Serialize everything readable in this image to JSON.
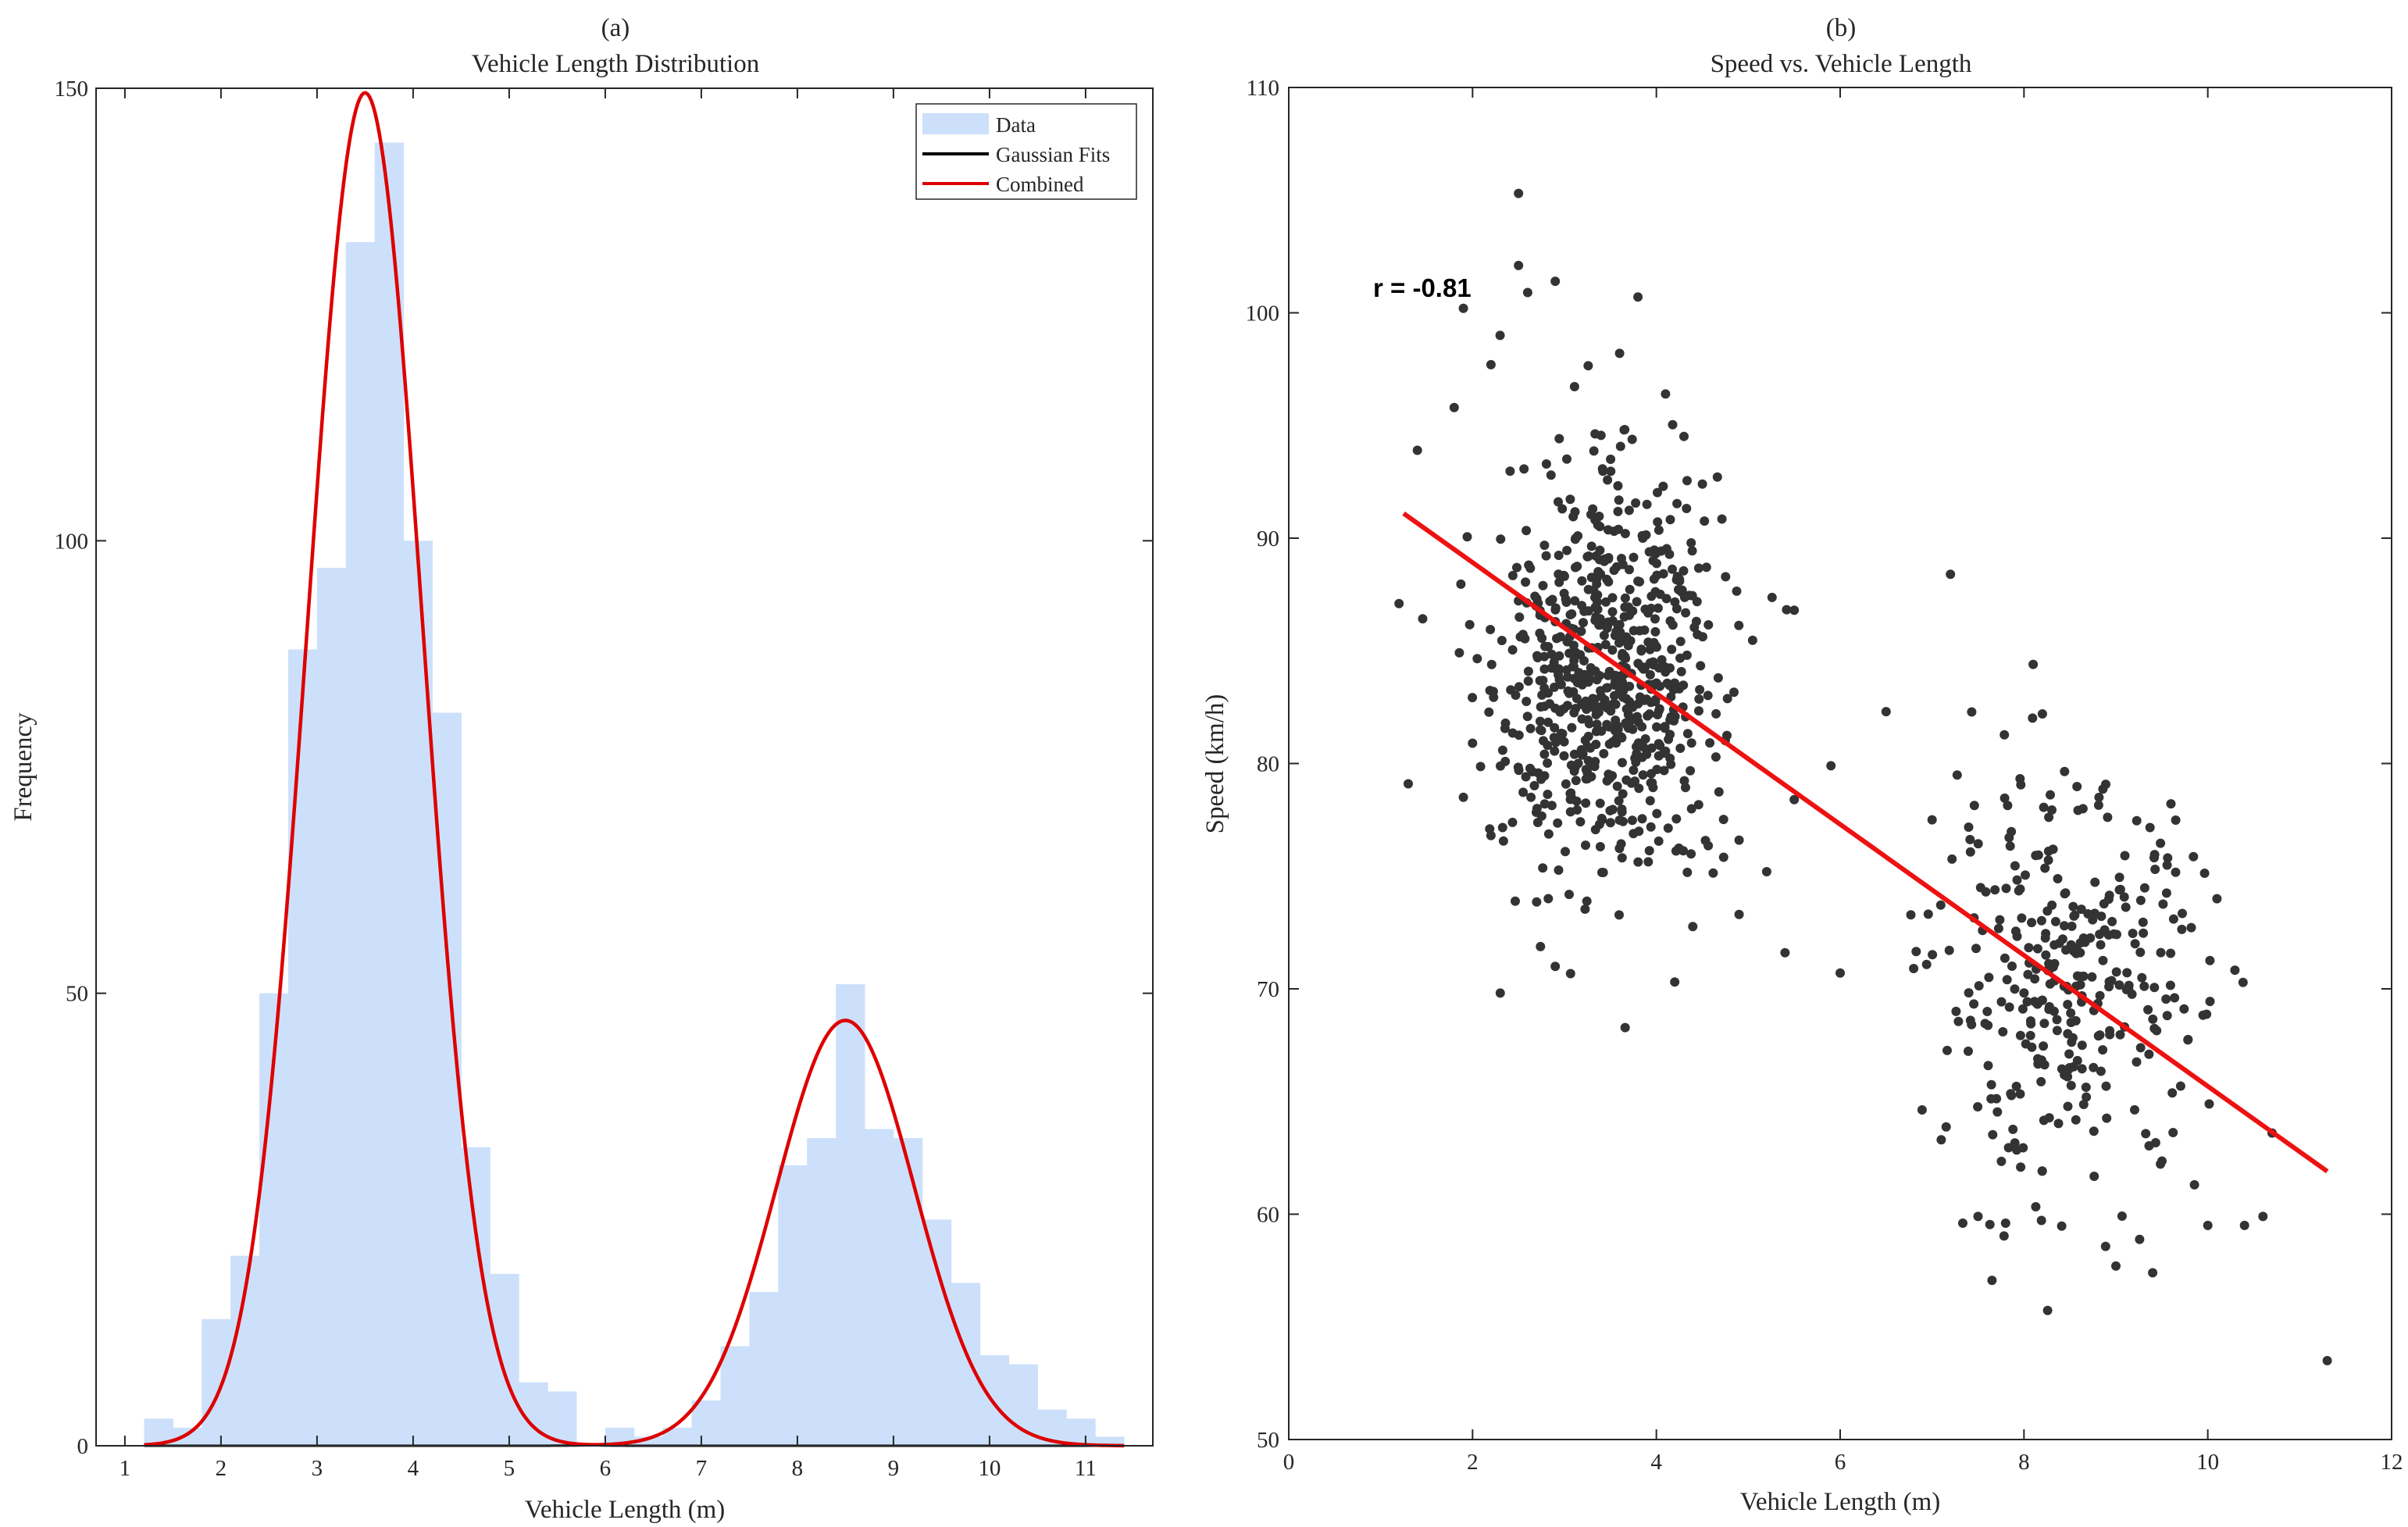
{
  "chart_data": [
    {
      "type": "bar",
      "panel_label": "(a)",
      "title": "Vehicle Length Distribution",
      "xlabel": "Vehicle Length (m)",
      "ylabel": "Frequency",
      "xlim": [
        0.7,
        11.7
      ],
      "ylim": [
        0,
        150
      ],
      "xticks": [
        1,
        2,
        3,
        4,
        5,
        6,
        7,
        8,
        9,
        10,
        11
      ],
      "yticks": [
        0,
        50,
        100,
        150
      ],
      "grid": false,
      "bin_start": 1.2,
      "bin_width": 0.3,
      "values": [
        3,
        2,
        14,
        21,
        50,
        88,
        97,
        133,
        144,
        100,
        81,
        33,
        19,
        7,
        6,
        0,
        2,
        1,
        2,
        5,
        11,
        17,
        31,
        34,
        51,
        35,
        34,
        25,
        18,
        10,
        9,
        4,
        3,
        1
      ],
      "colors": {
        "bars": "#cce0fb",
        "gaussian": "#000000",
        "combined": "#dd0000"
      },
      "gaussians": [
        {
          "amp": 149.5,
          "mean": 3.5,
          "sd": 0.6
        },
        {
          "amp": 47,
          "mean": 8.5,
          "sd": 0.72
        }
      ],
      "legend": {
        "position": "top-right",
        "entries": [
          {
            "label": "Data",
            "style": "patch",
            "color": "#cce0fb"
          },
          {
            "label": "Gaussian Fits",
            "style": "line",
            "color": "#000000"
          },
          {
            "label": "Combined",
            "style": "line",
            "color": "#dd0000"
          }
        ]
      }
    },
    {
      "type": "scatter",
      "panel_label": "(b)",
      "title": "Speed vs. Vehicle Length",
      "xlabel": "Vehicle Length (m)",
      "ylabel": "Speed (km/h)",
      "xlim": [
        0,
        12
      ],
      "ylim": [
        50,
        110
      ],
      "xticks": [
        0,
        2,
        4,
        6,
        8,
        10,
        12
      ],
      "yticks": [
        50,
        60,
        70,
        80,
        90,
        100,
        110
      ],
      "grid": false,
      "annotation": "r = -0.81",
      "colors": {
        "points": "#333333",
        "fit": "#ee1111"
      },
      "fit_line": {
        "x": [
          1.25,
          11.3
        ],
        "y": [
          91.1,
          61.9
        ]
      },
      "points": [
        [
          2.5,
          105.3
        ],
        [
          2.9,
          101.4
        ],
        [
          3.8,
          100.7
        ],
        [
          2.6,
          100.9
        ],
        [
          2.5,
          102.1
        ],
        [
          1.9,
          100.2
        ],
        [
          2.3,
          99.0
        ],
        [
          2.2,
          97.7
        ],
        [
          1.8,
          95.8
        ],
        [
          3.6,
          98.2
        ],
        [
          4.1,
          96.4
        ],
        [
          1.4,
          93.9
        ],
        [
          1.2,
          87.1
        ],
        [
          1.3,
          79.1
        ],
        [
          1.9,
          78.5
        ],
        [
          2.0,
          80.9
        ],
        [
          2.2,
          76.8
        ],
        [
          2.9,
          71.0
        ],
        [
          4.2,
          70.3
        ],
        [
          4.9,
          73.3
        ],
        [
          5.4,
          71.6
        ],
        [
          5.5,
          86.8
        ],
        [
          5.9,
          79.9
        ],
        [
          6.0,
          70.7
        ],
        [
          6.5,
          82.3
        ],
        [
          6.8,
          70.9
        ],
        [
          7.2,
          88.4
        ],
        [
          7.0,
          77.5
        ],
        [
          7.1,
          63.3
        ],
        [
          7.5,
          59.9
        ],
        [
          7.8,
          59.6
        ],
        [
          8.1,
          84.4
        ],
        [
          8.2,
          82.2
        ],
        [
          9.0,
          57.7
        ],
        [
          9.4,
          57.4
        ],
        [
          10.0,
          59.5
        ],
        [
          10.6,
          59.9
        ],
        [
          10.4,
          59.5
        ],
        [
          10.1,
          74.0
        ],
        [
          11.3,
          53.5
        ],
        [
          10.7,
          63.6
        ],
        [
          5.5,
          78.4
        ],
        [
          5.2,
          75.2
        ],
        [
          4.9,
          76.6
        ]
      ],
      "cluster_a": {
        "n": 680,
        "x_mean": 3.5,
        "x_sd": 0.6,
        "y_mean": 84.0,
        "y_sd": 4.6
      },
      "cluster_b": {
        "n": 330,
        "x_mean": 8.5,
        "x_sd": 0.72,
        "y_mean": 70.0,
        "y_sd": 4.3
      }
    }
  ]
}
